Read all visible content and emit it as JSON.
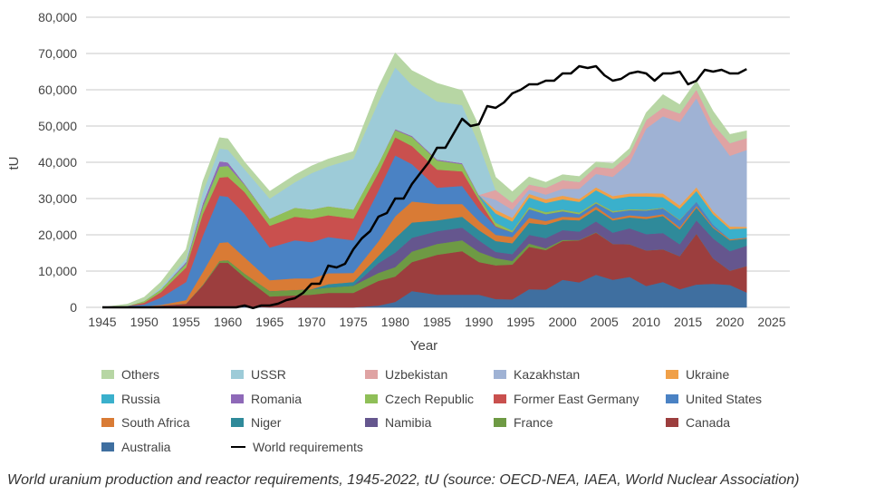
{
  "chart_data": {
    "type": "area",
    "stacked": true,
    "xlabel": "Year",
    "ylabel": "tU",
    "xlim": [
      1945,
      2025
    ],
    "ylim": [
      0,
      80000
    ],
    "x_ticks": [
      1945,
      1950,
      1955,
      1960,
      1965,
      1970,
      1975,
      1980,
      1985,
      1990,
      1995,
      2000,
      2005,
      2010,
      2015,
      2020,
      2025
    ],
    "y_ticks": [
      0,
      10000,
      20000,
      30000,
      40000,
      50000,
      60000,
      70000,
      80000
    ],
    "y_tick_labels": [
      "0",
      "10,000",
      "20,000",
      "30,000",
      "40,000",
      "50,000",
      "60,000",
      "70,000",
      "80,000"
    ],
    "grid": true,
    "legend_position": "bottom",
    "unit_note": "series values in thousand tU",
    "x": [
      1945,
      1948,
      1950,
      1952,
      1955,
      1957,
      1959,
      1960,
      1962,
      1965,
      1968,
      1970,
      1972,
      1975,
      1978,
      1980,
      1982,
      1985,
      1988,
      1990,
      1992,
      1994,
      1996,
      1998,
      2000,
      2002,
      2004,
      2006,
      2008,
      2010,
      2012,
      2014,
      2016,
      2018,
      2020,
      2022
    ],
    "series": [
      {
        "name": "Australia",
        "color": "#3f6fa0",
        "values": [
          0,
          0,
          0,
          0,
          0,
          0,
          0.3,
          0.3,
          0.3,
          0,
          0,
          0,
          0,
          0,
          0.5,
          1.5,
          4.5,
          3.5,
          3.5,
          3.5,
          2.3,
          2.2,
          5,
          4.9,
          7.6,
          6.9,
          9,
          7.6,
          8.4,
          5.9,
          7,
          5,
          6.3,
          6.5,
          6.2,
          4.1
        ]
      },
      {
        "name": "Canada",
        "color": "#9c3e3e",
        "values": [
          0,
          0.1,
          0.3,
          0.5,
          1,
          6,
          12,
          12,
          8,
          3,
          3.3,
          3.5,
          4,
          4,
          6.8,
          7,
          8,
          11,
          12,
          9,
          9.3,
          9.6,
          11.7,
          10.9,
          10.7,
          11.6,
          11.6,
          9.9,
          9,
          9.8,
          9,
          9.1,
          14,
          7,
          3.9,
          7.3
        ]
      },
      {
        "name": "France",
        "color": "#6e9a44",
        "values": [
          0,
          0,
          0,
          0,
          0,
          0.2,
          0.5,
          0.7,
          1,
          1.5,
          1.5,
          1.5,
          1.5,
          2,
          2.2,
          2.6,
          2.9,
          3,
          3,
          2.8,
          2,
          1,
          0.9,
          0.5,
          0.3,
          0.1,
          0.1,
          0,
          0,
          0,
          0,
          0,
          0,
          0,
          0,
          0
        ]
      },
      {
        "name": "Namibia",
        "color": "#65568e",
        "values": [
          0,
          0,
          0,
          0,
          0,
          0,
          0,
          0,
          0,
          0,
          0,
          0,
          0,
          0,
          2.7,
          4,
          3.8,
          3.5,
          3.5,
          3.2,
          1.7,
          1.9,
          2.4,
          2.8,
          2.7,
          2.3,
          3,
          3.1,
          4.4,
          4.5,
          4.5,
          3.3,
          3.7,
          5.5,
          5.4,
          5.6
        ]
      },
      {
        "name": "Niger",
        "color": "#2f8a9a",
        "values": [
          0,
          0,
          0,
          0,
          0,
          0,
          0,
          0,
          0,
          0,
          0,
          0,
          0.9,
          1,
          2,
          4,
          4.2,
          3,
          3,
          2.8,
          3,
          3,
          3.3,
          3.7,
          2.9,
          3.1,
          3.3,
          3.4,
          3,
          4.2,
          4.7,
          4.1,
          3.5,
          2.9,
          3,
          2
        ]
      },
      {
        "name": "South Africa",
        "color": "#d97b35",
        "values": [
          0,
          0,
          0,
          0.2,
          1,
          3.5,
          5,
          5,
          4.5,
          3,
          3.2,
          3,
          3,
          2.5,
          4,
          6,
          5.8,
          4.5,
          3.5,
          2.5,
          1.7,
          1.7,
          1.4,
          1,
          0.8,
          0.8,
          0.8,
          0.5,
          0.6,
          0.6,
          0.5,
          0.6,
          0.5,
          0.3,
          0.3,
          0.2
        ]
      },
      {
        "name": "United States",
        "color": "#4a82c4",
        "values": [
          0,
          0.3,
          0.5,
          2,
          5,
          10,
          13,
          12.5,
          12,
          9,
          10.5,
          10,
          10,
          9,
          14,
          16.8,
          10.3,
          4.5,
          5,
          3.4,
          2.2,
          1.3,
          2.4,
          1.9,
          1.5,
          0.9,
          0.9,
          1.7,
          1.4,
          1.7,
          1.6,
          1.9,
          1.1,
          0.6,
          0.01,
          0.1
        ]
      },
      {
        "name": "Former East Germany",
        "color": "#c9504e",
        "values": [
          0,
          0,
          0.5,
          1.5,
          4,
          6,
          5,
          5.5,
          6,
          6,
          6.5,
          6.5,
          6,
          6,
          5,
          5,
          5,
          5,
          4,
          2.5,
          0.2,
          0,
          0,
          0,
          0,
          0,
          0,
          0,
          0,
          0,
          0,
          0,
          0,
          0,
          0,
          0
        ]
      },
      {
        "name": "Czech Republic",
        "color": "#8fbf58",
        "values": [
          0,
          0,
          0.5,
          0.8,
          1,
          2,
          3,
          3,
          2,
          2,
          2.5,
          2.5,
          2.5,
          2.5,
          2.5,
          2,
          2.5,
          2.5,
          2,
          1,
          1,
          0.5,
          0.6,
          0.6,
          0.5,
          0.5,
          0.4,
          0.4,
          0.3,
          0.3,
          0.2,
          0.2,
          0,
          0,
          0,
          0
        ]
      },
      {
        "name": "Romania",
        "color": "#8e69b8",
        "values": [
          0,
          0,
          0,
          0,
          0.5,
          1,
          1.5,
          1,
          0.3,
          0,
          0,
          0,
          0,
          0,
          0,
          0.3,
          0.3,
          0.3,
          0.3,
          0.3,
          0,
          0,
          0,
          0,
          0,
          0,
          0,
          0,
          0,
          0,
          0,
          0,
          0,
          0,
          0,
          0
        ]
      },
      {
        "name": "Russia",
        "color": "#3ab0cc",
        "values": [
          0,
          0,
          0,
          0,
          0,
          0,
          0,
          0,
          0,
          0,
          0,
          0,
          0,
          0,
          0,
          0,
          0,
          0,
          0,
          0,
          2.5,
          2.5,
          2.6,
          2.5,
          2.8,
          2.9,
          3.2,
          3.3,
          3.5,
          3.6,
          2.9,
          3,
          3,
          2.9,
          2.8,
          2.5
        ]
      },
      {
        "name": "Ukraine",
        "color": "#f0a048",
        "values": [
          0,
          0,
          0,
          0,
          0,
          0,
          0,
          0,
          0,
          0,
          0,
          0,
          0,
          0,
          0,
          0,
          0,
          0,
          0,
          0,
          1,
          1,
          1,
          1,
          1,
          0.8,
          0.8,
          0.8,
          0.8,
          0.9,
          1,
          0.9,
          1,
          0.8,
          0.7,
          0.4
        ]
      },
      {
        "name": "Kazakhstan",
        "color": "#9fb2d4",
        "values": [
          0,
          0,
          0,
          0,
          0,
          0,
          0,
          0,
          0,
          0,
          0,
          0,
          0,
          0,
          0,
          0,
          0,
          0,
          0,
          0,
          2.8,
          2.2,
          1.2,
          1.3,
          1.9,
          2.8,
          3.7,
          5.3,
          8.5,
          17.8,
          21.3,
          23,
          24.6,
          21.7,
          19.5,
          21.2
        ]
      },
      {
        "name": "Uzbekistan",
        "color": "#dfa3a3",
        "values": [
          0,
          0,
          0,
          0,
          0,
          0,
          0,
          0,
          0,
          0,
          0,
          0,
          0,
          0,
          0,
          0,
          0,
          0,
          0,
          0,
          2.7,
          2,
          1.4,
          1.9,
          2.4,
          1.9,
          2,
          2.3,
          2.3,
          2.4,
          2.4,
          2.4,
          2.4,
          2.4,
          3.5,
          3.3
        ]
      },
      {
        "name": "USSR",
        "color": "#9dcbd8",
        "values": [
          0,
          0,
          0,
          0.5,
          1,
          3,
          3.5,
          3.5,
          4,
          5.5,
          7,
          10,
          11,
          14,
          17,
          17,
          14,
          16,
          16,
          14,
          0,
          0,
          0,
          0,
          0,
          0,
          0,
          0,
          0,
          0,
          0,
          0,
          0,
          0,
          0,
          0
        ]
      },
      {
        "name": "Others",
        "color": "#b7d6a4",
        "values": [
          0,
          0.5,
          1,
          1.5,
          2.5,
          3,
          3,
          3,
          2,
          2,
          2,
          2,
          2,
          2,
          4,
          4,
          4,
          5,
          4,
          5,
          3.5,
          3,
          2.1,
          1.5,
          1.5,
          1.5,
          1.3,
          1.4,
          1.6,
          2,
          3.6,
          2.4,
          2.4,
          3.5,
          2.4,
          2
        ]
      }
    ],
    "line_series": {
      "name": "World requirements",
      "color": "#000000",
      "x": [
        1945,
        1960,
        1961,
        1962,
        1963,
        1964,
        1965,
        1966,
        1967,
        1968,
        1969,
        1970,
        1971,
        1972,
        1973,
        1974,
        1975,
        1976,
        1977,
        1978,
        1979,
        1980,
        1981,
        1982,
        1983,
        1984,
        1985,
        1986,
        1987,
        1988,
        1989,
        1990,
        1991,
        1992,
        1993,
        1994,
        1995,
        1996,
        1997,
        1998,
        1999,
        2000,
        2001,
        2002,
        2003,
        2004,
        2005,
        2006,
        2007,
        2008,
        2009,
        2010,
        2011,
        2012,
        2013,
        2014,
        2015,
        2016,
        2017,
        2018,
        2019,
        2020,
        2021,
        2022
      ],
      "values": [
        0,
        0,
        0,
        0.5,
        -0.2,
        0.5,
        0.5,
        1,
        2,
        2.5,
        4,
        6.5,
        6.5,
        11.5,
        11,
        12,
        16,
        19,
        21,
        25,
        26,
        30,
        30,
        34,
        37,
        40,
        44,
        44,
        48,
        52,
        50,
        50.5,
        55.5,
        55,
        56.5,
        59,
        60,
        61.5,
        61.5,
        62.5,
        62.5,
        64.5,
        64.5,
        66.5,
        66,
        66.5,
        64,
        62.5,
        63,
        64.5,
        65,
        64.5,
        62.5,
        64.5,
        64.5,
        65,
        61.5,
        62.5,
        65.5,
        65,
        65.5,
        64.5,
        64.5,
        65.7
      ]
    },
    "legend": [
      "Others",
      "USSR",
      "Uzbekistan",
      "Kazakhstan",
      "Ukraine",
      "Russia",
      "Romania",
      "Czech Republic",
      "Former East Germany",
      "United States",
      "South Africa",
      "Niger",
      "Namibia",
      "France",
      "Canada",
      "Australia",
      "World requirements"
    ]
  },
  "caption": "World uranium production and reactor requirements, 1945-2022, tU (source: OECD-NEA, IAEA, World Nuclear Association)"
}
